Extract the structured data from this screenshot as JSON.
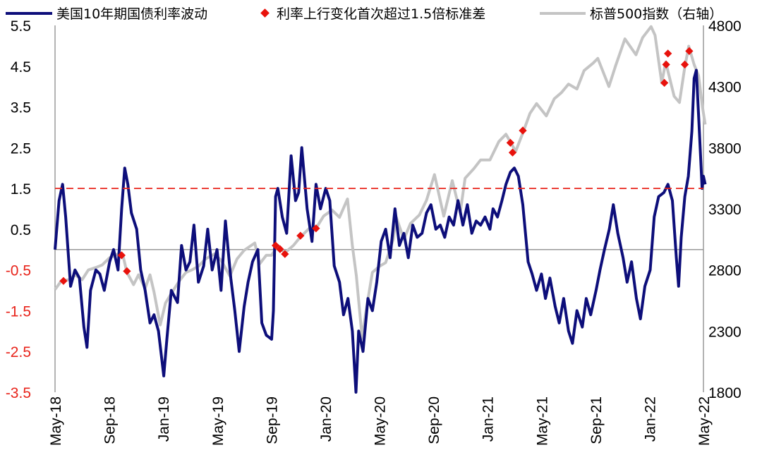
{
  "chart_data": {
    "type": "line",
    "legend": {
      "placement": "top",
      "items": [
        {
          "label": "美国10年期国债利率波动",
          "color": "#0d0e7a",
          "marker": "line"
        },
        {
          "label": "利率上行变化首次超过1.5倍标准差",
          "color": "#e8120c",
          "marker": "diamond"
        },
        {
          "label": "标普500指数（右轴）",
          "color": "#c4c4c4",
          "marker": "line"
        }
      ]
    },
    "x_ticks": [
      "May-18",
      "Sep-18",
      "Jan-19",
      "May-19",
      "Sep-19",
      "Jan-20",
      "May-20",
      "Sep-20",
      "Jan-21",
      "May-21",
      "Sep-21",
      "Jan-22",
      "May-22"
    ],
    "y_left": {
      "range": [
        -3.5,
        5.5
      ],
      "ticks": [
        "5.5",
        "4.5",
        "3.5",
        "2.5",
        "1.5",
        "0.5",
        "-0.5",
        "-1.5",
        "-2.5",
        "-3.5"
      ],
      "negative_tick_color": "#e8241b"
    },
    "y_right": {
      "range": [
        1800,
        4800
      ],
      "ticks": [
        "4800",
        "4300",
        "3800",
        "3300",
        "2800",
        "2300",
        "1800"
      ]
    },
    "threshold": {
      "value": 1.5,
      "color": "#e8241b",
      "style": "dashed"
    },
    "zero_line": true,
    "grid": false,
    "series": [
      {
        "name": "美国10年期国债利率波动",
        "axis": "left",
        "color": "#0d0e7a",
        "points": [
          [
            "2018-05-01",
            0.0
          ],
          [
            "2018-05-10",
            1.2
          ],
          [
            "2018-05-18",
            1.6
          ],
          [
            "2018-05-25",
            0.8
          ],
          [
            "2018-06-05",
            -0.9
          ],
          [
            "2018-06-15",
            -0.5
          ],
          [
            "2018-06-25",
            -0.7
          ],
          [
            "2018-07-05",
            -1.9
          ],
          [
            "2018-07-12",
            -2.4
          ],
          [
            "2018-07-20",
            -1.0
          ],
          [
            "2018-08-01",
            -0.5
          ],
          [
            "2018-08-10",
            -0.6
          ],
          [
            "2018-08-20",
            -1.0
          ],
          [
            "2018-09-01",
            -0.3
          ],
          [
            "2018-09-10",
            0.0
          ],
          [
            "2018-09-20",
            -0.5
          ],
          [
            "2018-09-28",
            1.0
          ],
          [
            "2018-10-05",
            2.0
          ],
          [
            "2018-10-12",
            1.6
          ],
          [
            "2018-10-20",
            0.9
          ],
          [
            "2018-11-01",
            0.5
          ],
          [
            "2018-11-10",
            -0.5
          ],
          [
            "2018-11-20",
            -1.0
          ],
          [
            "2018-12-01",
            -1.8
          ],
          [
            "2018-12-10",
            -1.6
          ],
          [
            "2018-12-20",
            -2.0
          ],
          [
            "2019-01-01",
            -3.1
          ],
          [
            "2019-01-08",
            -2.2
          ],
          [
            "2019-01-18",
            -1.0
          ],
          [
            "2019-02-01",
            -1.3
          ],
          [
            "2019-02-10",
            0.1
          ],
          [
            "2019-02-20",
            -0.5
          ],
          [
            "2019-03-01",
            -0.3
          ],
          [
            "2019-03-10",
            0.6
          ],
          [
            "2019-03-20",
            -0.8
          ],
          [
            "2019-04-01",
            -0.4
          ],
          [
            "2019-04-10",
            0.5
          ],
          [
            "2019-04-20",
            -0.5
          ],
          [
            "2019-05-01",
            0.0
          ],
          [
            "2019-05-10",
            -1.0
          ],
          [
            "2019-05-20",
            0.7
          ],
          [
            "2019-06-01",
            -0.7
          ],
          [
            "2019-06-10",
            -1.5
          ],
          [
            "2019-06-20",
            -2.5
          ],
          [
            "2019-07-01",
            -1.4
          ],
          [
            "2019-07-10",
            -0.8
          ],
          [
            "2019-07-20",
            -0.3
          ],
          [
            "2019-08-01",
            0.0
          ],
          [
            "2019-08-10",
            -1.8
          ],
          [
            "2019-08-20",
            -2.1
          ],
          [
            "2019-09-01",
            -2.2
          ],
          [
            "2019-09-05",
            -1.5
          ],
          [
            "2019-09-10",
            1.3
          ],
          [
            "2019-09-15",
            1.5
          ],
          [
            "2019-09-25",
            0.8
          ],
          [
            "2019-10-05",
            0.4
          ],
          [
            "2019-10-15",
            2.3
          ],
          [
            "2019-10-25",
            1.2
          ],
          [
            "2019-11-01",
            1.4
          ],
          [
            "2019-11-08",
            2.5
          ],
          [
            "2019-11-20",
            1.0
          ],
          [
            "2019-12-01",
            0.2
          ],
          [
            "2019-12-10",
            1.6
          ],
          [
            "2019-12-20",
            1.0
          ],
          [
            "2020-01-01",
            1.5
          ],
          [
            "2020-01-10",
            1.2
          ],
          [
            "2020-01-20",
            -0.4
          ],
          [
            "2020-02-01",
            -0.8
          ],
          [
            "2020-02-10",
            -1.6
          ],
          [
            "2020-02-20",
            -1.2
          ],
          [
            "2020-03-01",
            -2.0
          ],
          [
            "2020-03-09",
            -3.5
          ],
          [
            "2020-03-15",
            -2.0
          ],
          [
            "2020-03-25",
            -2.5
          ],
          [
            "2020-04-05",
            -1.2
          ],
          [
            "2020-04-15",
            -1.5
          ],
          [
            "2020-04-25",
            -0.8
          ],
          [
            "2020-05-05",
            0.2
          ],
          [
            "2020-05-15",
            0.5
          ],
          [
            "2020-05-25",
            -0.2
          ],
          [
            "2020-06-05",
            1.0
          ],
          [
            "2020-06-15",
            0.1
          ],
          [
            "2020-06-25",
            0.4
          ],
          [
            "2020-07-05",
            -0.2
          ],
          [
            "2020-07-15",
            0.6
          ],
          [
            "2020-07-25",
            0.3
          ],
          [
            "2020-08-05",
            0.4
          ],
          [
            "2020-08-15",
            0.9
          ],
          [
            "2020-08-25",
            1.1
          ],
          [
            "2020-09-05",
            0.5
          ],
          [
            "2020-09-15",
            0.6
          ],
          [
            "2020-09-25",
            0.3
          ],
          [
            "2020-10-05",
            0.8
          ],
          [
            "2020-10-15",
            0.6
          ],
          [
            "2020-10-25",
            1.2
          ],
          [
            "2020-11-05",
            0.6
          ],
          [
            "2020-11-15",
            1.1
          ],
          [
            "2020-11-25",
            0.4
          ],
          [
            "2020-12-05",
            0.7
          ],
          [
            "2020-12-15",
            0.6
          ],
          [
            "2020-12-25",
            0.8
          ],
          [
            "2021-01-05",
            0.5
          ],
          [
            "2021-01-12",
            1.0
          ],
          [
            "2021-01-22",
            0.8
          ],
          [
            "2021-02-01",
            1.2
          ],
          [
            "2021-02-10",
            1.6
          ],
          [
            "2021-02-20",
            1.9
          ],
          [
            "2021-03-01",
            2.0
          ],
          [
            "2021-03-10",
            1.8
          ],
          [
            "2021-03-20",
            1.1
          ],
          [
            "2021-04-01",
            -0.3
          ],
          [
            "2021-04-10",
            -0.6
          ],
          [
            "2021-04-20",
            -1.0
          ],
          [
            "2021-05-01",
            -0.6
          ],
          [
            "2021-05-10",
            -1.2
          ],
          [
            "2021-05-20",
            -0.7
          ],
          [
            "2021-06-01",
            -1.4
          ],
          [
            "2021-06-10",
            -1.8
          ],
          [
            "2021-06-20",
            -1.2
          ],
          [
            "2021-07-01",
            -2.0
          ],
          [
            "2021-07-10",
            -2.3
          ],
          [
            "2021-07-20",
            -1.5
          ],
          [
            "2021-08-01",
            -1.9
          ],
          [
            "2021-08-10",
            -1.2
          ],
          [
            "2021-08-20",
            -1.6
          ],
          [
            "2021-09-01",
            -1.0
          ],
          [
            "2021-09-10",
            -0.5
          ],
          [
            "2021-09-20",
            0.0
          ],
          [
            "2021-10-01",
            0.5
          ],
          [
            "2021-10-10",
            1.1
          ],
          [
            "2021-10-20",
            0.4
          ],
          [
            "2021-11-01",
            -0.2
          ],
          [
            "2021-11-10",
            -0.8
          ],
          [
            "2021-11-20",
            -0.3
          ],
          [
            "2021-12-01",
            -1.2
          ],
          [
            "2021-12-10",
            -1.7
          ],
          [
            "2021-12-20",
            -0.9
          ],
          [
            "2022-01-01",
            -0.5
          ],
          [
            "2022-01-10",
            0.8
          ],
          [
            "2022-01-20",
            1.3
          ],
          [
            "2022-02-01",
            1.4
          ],
          [
            "2022-02-10",
            1.6
          ],
          [
            "2022-02-20",
            1.2
          ],
          [
            "2022-03-01",
            -0.2
          ],
          [
            "2022-03-06",
            -0.9
          ],
          [
            "2022-03-12",
            0.3
          ],
          [
            "2022-03-20",
            1.3
          ],
          [
            "2022-03-28",
            1.8
          ],
          [
            "2022-04-05",
            2.9
          ],
          [
            "2022-04-10",
            4.2
          ],
          [
            "2022-04-15",
            4.4
          ],
          [
            "2022-04-20",
            3.3
          ],
          [
            "2022-04-25",
            2.2
          ],
          [
            "2022-04-28",
            1.5
          ],
          [
            "2022-05-01",
            1.8
          ],
          [
            "2022-05-05",
            1.6
          ]
        ]
      },
      {
        "name": "标普500指数（右轴）",
        "axis": "right",
        "color": "#c4c4c4",
        "points": [
          [
            "2018-05-01",
            2640
          ],
          [
            "2018-05-15",
            2710
          ],
          [
            "2018-06-01",
            2720
          ],
          [
            "2018-06-15",
            2760
          ],
          [
            "2018-07-01",
            2720
          ],
          [
            "2018-07-15",
            2800
          ],
          [
            "2018-08-01",
            2820
          ],
          [
            "2018-08-15",
            2840
          ],
          [
            "2018-09-01",
            2900
          ],
          [
            "2018-09-20",
            2930
          ],
          [
            "2018-10-01",
            2920
          ],
          [
            "2018-10-10",
            2780
          ],
          [
            "2018-10-25",
            2680
          ],
          [
            "2018-11-05",
            2760
          ],
          [
            "2018-11-20",
            2650
          ],
          [
            "2018-12-01",
            2760
          ],
          [
            "2018-12-10",
            2620
          ],
          [
            "2018-12-24",
            2350
          ],
          [
            "2019-01-05",
            2530
          ],
          [
            "2019-01-20",
            2620
          ],
          [
            "2019-02-05",
            2710
          ],
          [
            "2019-02-20",
            2780
          ],
          [
            "2019-03-05",
            2800
          ],
          [
            "2019-03-20",
            2830
          ],
          [
            "2019-04-05",
            2890
          ],
          [
            "2019-04-25",
            2930
          ],
          [
            "2019-05-10",
            2880
          ],
          [
            "2019-05-30",
            2750
          ],
          [
            "2019-06-15",
            2890
          ],
          [
            "2019-07-01",
            2960
          ],
          [
            "2019-07-25",
            3020
          ],
          [
            "2019-08-05",
            2850
          ],
          [
            "2019-08-20",
            2920
          ],
          [
            "2019-09-01",
            2920
          ],
          [
            "2019-09-15",
            3000
          ],
          [
            "2019-10-01",
            2940
          ],
          [
            "2019-10-20",
            3000
          ],
          [
            "2019-11-05",
            3070
          ],
          [
            "2019-11-25",
            3140
          ],
          [
            "2019-12-10",
            3140
          ],
          [
            "2019-12-27",
            3240
          ],
          [
            "2020-01-15",
            3290
          ],
          [
            "2020-02-01",
            3230
          ],
          [
            "2020-02-19",
            3380
          ],
          [
            "2020-03-01",
            3000
          ],
          [
            "2020-03-10",
            2750
          ],
          [
            "2020-03-23",
            2240
          ],
          [
            "2020-04-01",
            2470
          ],
          [
            "2020-04-15",
            2780
          ],
          [
            "2020-05-01",
            2830
          ],
          [
            "2020-05-15",
            2860
          ],
          [
            "2020-06-01",
            3050
          ],
          [
            "2020-06-08",
            3230
          ],
          [
            "2020-06-25",
            3050
          ],
          [
            "2020-07-10",
            3180
          ],
          [
            "2020-07-30",
            3250
          ],
          [
            "2020-08-15",
            3370
          ],
          [
            "2020-09-02",
            3580
          ],
          [
            "2020-09-23",
            3240
          ],
          [
            "2020-10-12",
            3530
          ],
          [
            "2020-10-30",
            3270
          ],
          [
            "2020-11-10",
            3550
          ],
          [
            "2020-11-30",
            3630
          ],
          [
            "2020-12-15",
            3700
          ],
          [
            "2021-01-05",
            3700
          ],
          [
            "2021-01-25",
            3850
          ],
          [
            "2021-02-10",
            3910
          ],
          [
            "2021-03-04",
            3770
          ],
          [
            "2021-03-20",
            3920
          ],
          [
            "2021-04-05",
            4080
          ],
          [
            "2021-04-20",
            4160
          ],
          [
            "2021-05-12",
            4060
          ],
          [
            "2021-05-30",
            4200
          ],
          [
            "2021-06-15",
            4250
          ],
          [
            "2021-07-01",
            4320
          ],
          [
            "2021-07-20",
            4280
          ],
          [
            "2021-08-05",
            4430
          ],
          [
            "2021-08-25",
            4490
          ],
          [
            "2021-09-05",
            4530
          ],
          [
            "2021-09-30",
            4300
          ],
          [
            "2021-10-15",
            4470
          ],
          [
            "2021-11-05",
            4690
          ],
          [
            "2021-11-30",
            4560
          ],
          [
            "2021-12-15",
            4700
          ],
          [
            "2022-01-03",
            4790
          ],
          [
            "2022-01-12",
            4720
          ],
          [
            "2022-01-27",
            4330
          ],
          [
            "2022-02-05",
            4500
          ],
          [
            "2022-02-24",
            4220
          ],
          [
            "2022-03-08",
            4170
          ],
          [
            "2022-03-20",
            4460
          ],
          [
            "2022-03-29",
            4630
          ],
          [
            "2022-04-10",
            4480
          ],
          [
            "2022-04-20",
            4390
          ],
          [
            "2022-04-29",
            4130
          ],
          [
            "2022-05-05",
            3990
          ]
        ]
      },
      {
        "name": "利率上行变化首次超过1.5倍标准差",
        "axis": "right",
        "color": "#e8120c",
        "type": "scatter",
        "points": [
          [
            "2018-05-20",
            2710
          ],
          [
            "2018-09-28",
            2920
          ],
          [
            "2018-10-10",
            2790
          ],
          [
            "2019-09-10",
            3000
          ],
          [
            "2019-09-20",
            2970
          ],
          [
            "2019-10-01",
            2930
          ],
          [
            "2019-11-05",
            3080
          ],
          [
            "2019-12-10",
            3140
          ],
          [
            "2021-02-20",
            3840
          ],
          [
            "2021-02-25",
            3760
          ],
          [
            "2021-03-20",
            3940
          ],
          [
            "2022-02-02",
            4330
          ],
          [
            "2022-02-06",
            4480
          ],
          [
            "2022-02-10",
            4570
          ],
          [
            "2022-03-20",
            4480
          ],
          [
            "2022-03-30",
            4590
          ]
        ]
      }
    ]
  }
}
